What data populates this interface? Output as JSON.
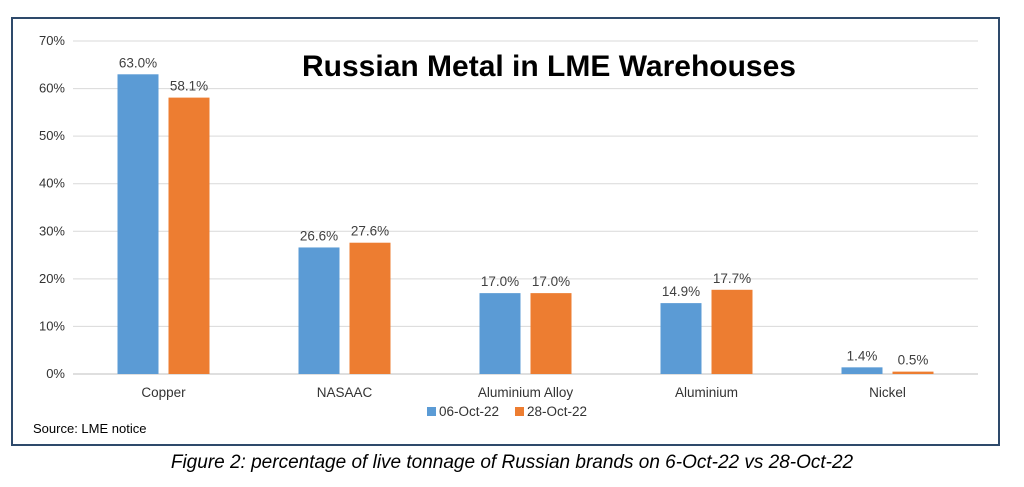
{
  "chart_data": {
    "type": "bar",
    "title": "Russian Metal in LME Warehouses",
    "categories": [
      "Copper",
      "NASAAC",
      "Aluminium Alloy",
      "Aluminium",
      "Nickel"
    ],
    "series": [
      {
        "name": "06-Oct-22",
        "color": "#5b9bd5",
        "values": [
          63.0,
          26.6,
          17.0,
          14.9,
          1.4
        ],
        "labels": [
          "63.0%",
          "26.6%",
          "17.0%",
          "14.9%",
          "1.4%"
        ]
      },
      {
        "name": "28-Oct-22",
        "color": "#ed7d31",
        "values": [
          58.1,
          27.6,
          17.0,
          17.7,
          0.5
        ],
        "labels": [
          "58.1%",
          "27.6%",
          "17.0%",
          "17.7%",
          "0.5%"
        ]
      }
    ],
    "ylim": [
      0,
      70
    ],
    "yticks": [
      "0%",
      "10%",
      "20%",
      "30%",
      "40%",
      "50%",
      "60%",
      "70%"
    ],
    "grid": true,
    "legend_position": "bottom"
  },
  "source": "Source: LME notice",
  "caption": "Figure 2: percentage of live tonnage of Russian brands on 6-Oct-22 vs 28-Oct-22"
}
